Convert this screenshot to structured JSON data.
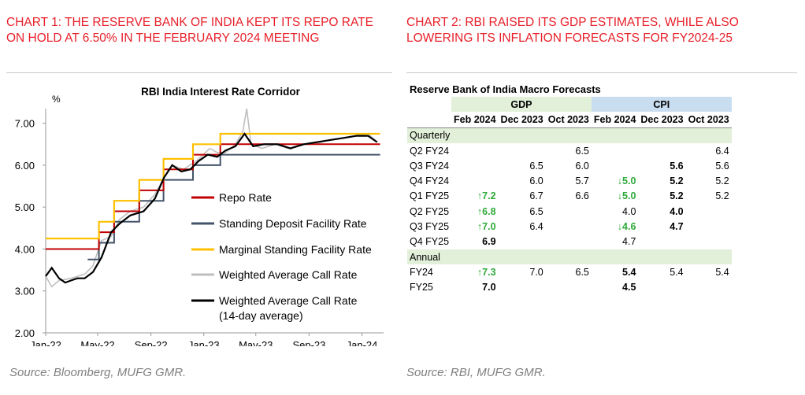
{
  "headings": {
    "chart1": "CHART 1: THE RESERVE BANK OF INDIA KEPT ITS REPO RATE ON HOLD AT 6.50% IN THE FEBRUARY 2024 MEETING",
    "chart2": "CHART 2: RBI RAISED ITS GDP ESTIMATES, WHILE ALSO LOWERING ITS INFLATION FORECASTS FOR FY2024-25"
  },
  "sources": {
    "chart1": "Source: Bloomberg, MUFG GMR.",
    "chart2": "Source: RBI, MUFG GMR."
  },
  "colors": {
    "heading": "#e8202a",
    "repo": "#c00000",
    "sdf": "#44546a",
    "msf": "#ffc000",
    "call": "#bfbfbf",
    "call14": "#000000",
    "gdp_header": "#e2efd9",
    "cpi_header": "#c9ddf0",
    "up_down": "#2eaa3a"
  },
  "chart_data": [
    {
      "type": "line",
      "title": "RBI India Interest Rate Corridor",
      "ylabel": "%",
      "ylim": [
        2.0,
        7.5
      ],
      "yticks": [
        "2.00",
        "3.00",
        "4.00",
        "5.00",
        "6.00",
        "7.00"
      ],
      "xticks": [
        "Jan-22",
        "May-22",
        "Sep-22",
        "Jan-23",
        "May-23",
        "Sep-23",
        "Jan-24"
      ],
      "legend_position": "inside-right",
      "series": [
        {
          "name": "Repo Rate",
          "points": [
            [
              "2022-01-01",
              4.0
            ],
            [
              "2022-05-04",
              4.0
            ],
            [
              "2022-05-04",
              4.4
            ],
            [
              "2022-06-08",
              4.4
            ],
            [
              "2022-06-08",
              4.9
            ],
            [
              "2022-08-05",
              4.9
            ],
            [
              "2022-08-05",
              5.4
            ],
            [
              "2022-09-30",
              5.4
            ],
            [
              "2022-09-30",
              5.9
            ],
            [
              "2022-12-07",
              5.9
            ],
            [
              "2022-12-07",
              6.25
            ],
            [
              "2023-02-08",
              6.25
            ],
            [
              "2023-02-08",
              6.5
            ],
            [
              "2024-02-12",
              6.5
            ]
          ]
        },
        {
          "name": "Standing Deposit Facility Rate",
          "points": [
            [
              "2022-04-08",
              3.75
            ],
            [
              "2022-05-04",
              3.75
            ],
            [
              "2022-05-04",
              4.15
            ],
            [
              "2022-06-08",
              4.15
            ],
            [
              "2022-06-08",
              4.65
            ],
            [
              "2022-08-05",
              4.65
            ],
            [
              "2022-08-05",
              5.15
            ],
            [
              "2022-09-30",
              5.15
            ],
            [
              "2022-09-30",
              5.65
            ],
            [
              "2022-12-07",
              5.65
            ],
            [
              "2022-12-07",
              6.0
            ],
            [
              "2023-02-08",
              6.0
            ],
            [
              "2023-02-08",
              6.25
            ],
            [
              "2024-02-12",
              6.25
            ]
          ]
        },
        {
          "name": "Marginal Standing Facility Rate",
          "points": [
            [
              "2022-01-01",
              4.25
            ],
            [
              "2022-05-04",
              4.25
            ],
            [
              "2022-05-04",
              4.65
            ],
            [
              "2022-06-08",
              4.65
            ],
            [
              "2022-06-08",
              5.15
            ],
            [
              "2022-08-05",
              5.15
            ],
            [
              "2022-08-05",
              5.65
            ],
            [
              "2022-09-30",
              5.65
            ],
            [
              "2022-09-30",
              6.15
            ],
            [
              "2022-12-07",
              6.15
            ],
            [
              "2022-12-07",
              6.5
            ],
            [
              "2023-02-08",
              6.5
            ],
            [
              "2023-02-08",
              6.75
            ],
            [
              "2024-02-12",
              6.75
            ]
          ]
        },
        {
          "name": "Weighted Average Call Rate",
          "points": [
            [
              "2022-01-01",
              3.35
            ],
            [
              "2022-01-15",
              3.1
            ],
            [
              "2022-02-01",
              3.25
            ],
            [
              "2022-03-01",
              3.3
            ],
            [
              "2022-04-01",
              3.4
            ],
            [
              "2022-04-20",
              3.6
            ],
            [
              "2022-05-10",
              4.2
            ],
            [
              "2022-06-01",
              4.3
            ],
            [
              "2022-06-20",
              4.7
            ],
            [
              "2022-07-15",
              4.9
            ],
            [
              "2022-08-15",
              5.0
            ],
            [
              "2022-09-10",
              5.3
            ],
            [
              "2022-10-01",
              5.7
            ],
            [
              "2022-10-20",
              6.0
            ],
            [
              "2022-11-15",
              5.9
            ],
            [
              "2022-12-15",
              6.1
            ],
            [
              "2023-01-15",
              6.4
            ],
            [
              "2023-02-01",
              6.3
            ],
            [
              "2023-02-20",
              6.3
            ],
            [
              "2023-03-15",
              6.5
            ],
            [
              "2023-04-01",
              6.8
            ],
            [
              "2023-04-10",
              7.35
            ],
            [
              "2023-04-20",
              6.5
            ],
            [
              "2023-05-15",
              6.4
            ],
            [
              "2023-06-15",
              6.5
            ],
            [
              "2023-07-15",
              6.4
            ],
            [
              "2023-08-15",
              6.5
            ],
            [
              "2023-09-15",
              6.5
            ],
            [
              "2023-10-15",
              6.6
            ],
            [
              "2023-11-15",
              6.65
            ],
            [
              "2023-12-15",
              6.7
            ],
            [
              "2024-01-15",
              6.75
            ],
            [
              "2024-02-05",
              6.55
            ]
          ]
        },
        {
          "name": "Weighted Average Call Rate (14-day average)",
          "points": [
            [
              "2022-01-01",
              3.35
            ],
            [
              "2022-01-15",
              3.55
            ],
            [
              "2022-02-01",
              3.3
            ],
            [
              "2022-02-15",
              3.2
            ],
            [
              "2022-03-01",
              3.25
            ],
            [
              "2022-03-15",
              3.3
            ],
            [
              "2022-04-01",
              3.3
            ],
            [
              "2022-04-20",
              3.45
            ],
            [
              "2022-05-10",
              3.8
            ],
            [
              "2022-06-01",
              4.4
            ],
            [
              "2022-06-20",
              4.6
            ],
            [
              "2022-07-15",
              4.8
            ],
            [
              "2022-08-15",
              4.9
            ],
            [
              "2022-09-10",
              5.2
            ],
            [
              "2022-10-01",
              5.7
            ],
            [
              "2022-10-20",
              6.0
            ],
            [
              "2022-11-10",
              5.85
            ],
            [
              "2022-12-01",
              5.9
            ],
            [
              "2022-12-20",
              6.1
            ],
            [
              "2023-01-10",
              6.25
            ],
            [
              "2023-02-01",
              6.2
            ],
            [
              "2023-02-20",
              6.35
            ],
            [
              "2023-03-15",
              6.45
            ],
            [
              "2023-04-05",
              6.75
            ],
            [
              "2023-04-25",
              6.45
            ],
            [
              "2023-05-20",
              6.5
            ],
            [
              "2023-06-20",
              6.5
            ],
            [
              "2023-07-20",
              6.4
            ],
            [
              "2023-08-20",
              6.5
            ],
            [
              "2023-09-20",
              6.55
            ],
            [
              "2023-10-20",
              6.6
            ],
            [
              "2023-11-20",
              6.65
            ],
            [
              "2023-12-20",
              6.7
            ],
            [
              "2024-01-15",
              6.7
            ],
            [
              "2024-02-05",
              6.55
            ]
          ]
        }
      ]
    },
    {
      "type": "table",
      "title": "Reserve Bank of India Macro Forecasts",
      "groups": [
        "GDP",
        "CPI"
      ],
      "columns": [
        "",
        "Feb 2024",
        "Dec 2023",
        "Oct 2023",
        "Feb 2024",
        "Dec 2023",
        "Oct 2023"
      ],
      "sections": [
        {
          "label": "Quarterly",
          "rows": [
            {
              "label": "Q2 FY24",
              "cells": [
                "",
                "",
                "6.5",
                "",
                "",
                "6.4"
              ]
            },
            {
              "label": "Q3 FY24",
              "cells": [
                "",
                "6.5",
                "6.0",
                "",
                "5.6",
                "5.6"
              ]
            },
            {
              "label": "Q4 FY24",
              "cells": [
                "",
                "6.0",
                "5.7",
                "↓5.0",
                "5.2",
                "5.2"
              ]
            },
            {
              "label": "Q1 FY25",
              "cells": [
                "↑7.2",
                "6.7",
                "6.6",
                "↓5.0",
                "5.2",
                "5.2"
              ]
            },
            {
              "label": "Q2 FY25",
              "cells": [
                "↑6.8",
                "6.5",
                "",
                "4.0",
                "4.0",
                ""
              ]
            },
            {
              "label": "Q3 FY25",
              "cells": [
                "↑7.0",
                "6.4",
                "",
                "↓4.6",
                "4.7",
                ""
              ]
            },
            {
              "label": "Q4 FY25",
              "cells": [
                "6.9",
                "",
                "",
                "4.7",
                "",
                ""
              ]
            }
          ]
        },
        {
          "label": "Annual",
          "rows": [
            {
              "label": "FY24",
              "cells": [
                "↑7.3",
                "7.0",
                "6.5",
                "5.4",
                "5.4",
                "5.4"
              ]
            },
            {
              "label": "FY25",
              "cells": [
                "7.0",
                "",
                "",
                "4.5",
                "",
                ""
              ]
            }
          ]
        }
      ]
    }
  ]
}
